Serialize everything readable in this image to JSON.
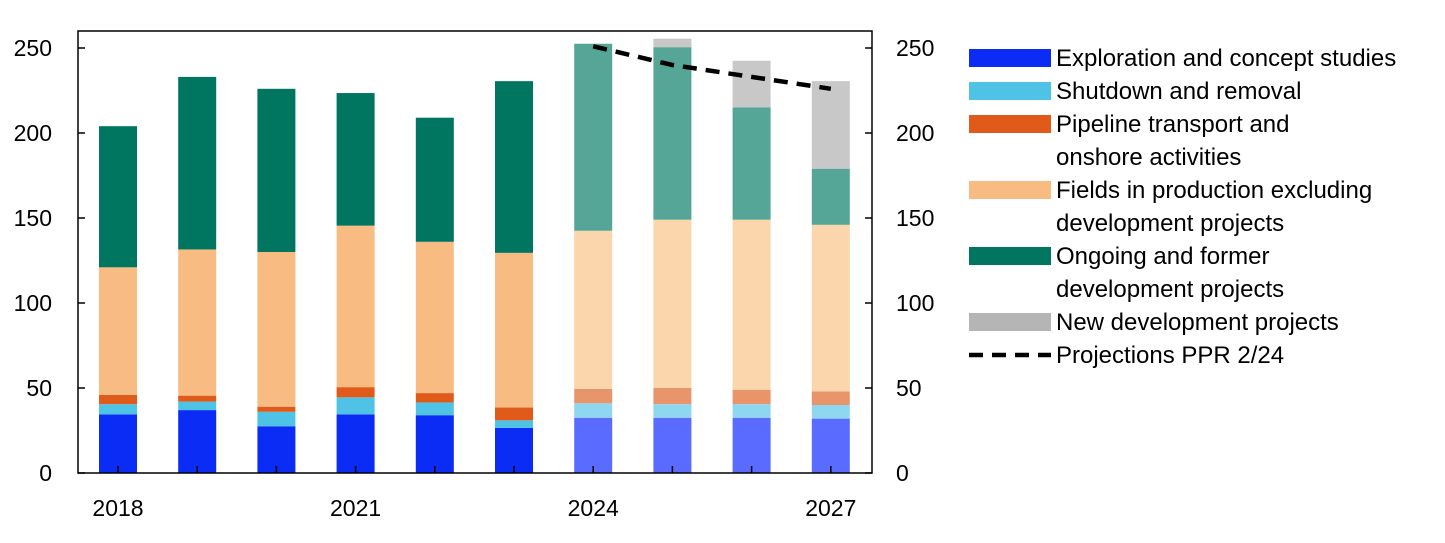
{
  "chart_data": {
    "type": "stacked-bar",
    "title": "",
    "xlabel": "",
    "ylabel": "",
    "ylim": [
      0,
      260
    ],
    "yticks": [
      0,
      50,
      100,
      150,
      200,
      250
    ],
    "ytick_labels_left": [
      "0",
      "50",
      "100",
      "150",
      "200",
      "250"
    ],
    "ytick_labels_right": [
      "0",
      "50",
      "100",
      "150",
      "200",
      "250"
    ],
    "categories": [
      "2018",
      "2019",
      "2020",
      "2021",
      "2022",
      "2023",
      "2024",
      "2025",
      "2026",
      "2027"
    ],
    "xtick_labels": [
      "2018",
      "",
      "",
      "2021",
      "",
      "",
      "2024",
      "",
      "",
      "2027"
    ],
    "projection_start_index": 6,
    "series": [
      {
        "name": "Exploration and concept studies",
        "color": "#0a2cf5",
        "color_projection": "#5a6cff",
        "values": [
          34.5,
          37,
          27.5,
          34.5,
          34,
          26.5,
          32.5,
          32.5,
          32.5,
          32
        ]
      },
      {
        "name": "Shutdown and removal",
        "color": "#4fc3e6",
        "color_projection": "#8fd7f0",
        "values": [
          6,
          5,
          8.5,
          10,
          7.5,
          4.5,
          8.5,
          8,
          8,
          8
        ]
      },
      {
        "name": "Pipeline transport and onshore activities",
        "color": "#e05a1a",
        "color_projection": "#e8956b",
        "values": [
          5.5,
          3.5,
          3,
          6,
          5.5,
          7.5,
          8.5,
          9.5,
          8.5,
          8
        ]
      },
      {
        "name": "Fields in production excluding development projects",
        "color": "#f8bc82",
        "color_projection": "#fbd5ab",
        "values": [
          75,
          86,
          91,
          95,
          89,
          91,
          93,
          99,
          100,
          98
        ]
      },
      {
        "name": "Ongoing and former development projects",
        "color": "#007560",
        "color_projection": "#55a696",
        "values": [
          83,
          101.5,
          96,
          78,
          73,
          101,
          110,
          101.5,
          66,
          33
        ]
      },
      {
        "name": "New development projects",
        "color": "#9e9e9e",
        "color_projection": "#c8c8c8",
        "values": [
          0,
          0,
          0,
          0,
          0,
          0,
          0,
          5,
          27.5,
          51.5
        ]
      }
    ],
    "projection_line": {
      "name": "Projections PPR 2/24",
      "x": [
        "2024",
        "2025",
        "2026",
        "2027"
      ],
      "values": [
        251,
        240,
        233,
        226
      ]
    },
    "legend": {
      "placement": "right",
      "entries": [
        {
          "lines": [
            "Exploration and concept studies"
          ],
          "color": "#0a2cf5",
          "kind": "patch"
        },
        {
          "lines": [
            "Shutdown and removal"
          ],
          "color": "#4fc3e6",
          "kind": "patch"
        },
        {
          "lines": [
            "Pipeline transport and",
            "onshore activities"
          ],
          "color": "#e05a1a",
          "kind": "patch"
        },
        {
          "lines": [
            "Fields in production excluding",
            "development projects"
          ],
          "color": "#f8bc82",
          "kind": "patch"
        },
        {
          "lines": [
            "Ongoing and former",
            "development projects"
          ],
          "color": "#007560",
          "kind": "patch"
        },
        {
          "lines": [
            "New development projects"
          ],
          "color": "#b5b5b5",
          "kind": "patch"
        },
        {
          "lines": [
            "Projections PPR 2/24"
          ],
          "color": "#000000",
          "kind": "dashed-line"
        }
      ]
    }
  }
}
